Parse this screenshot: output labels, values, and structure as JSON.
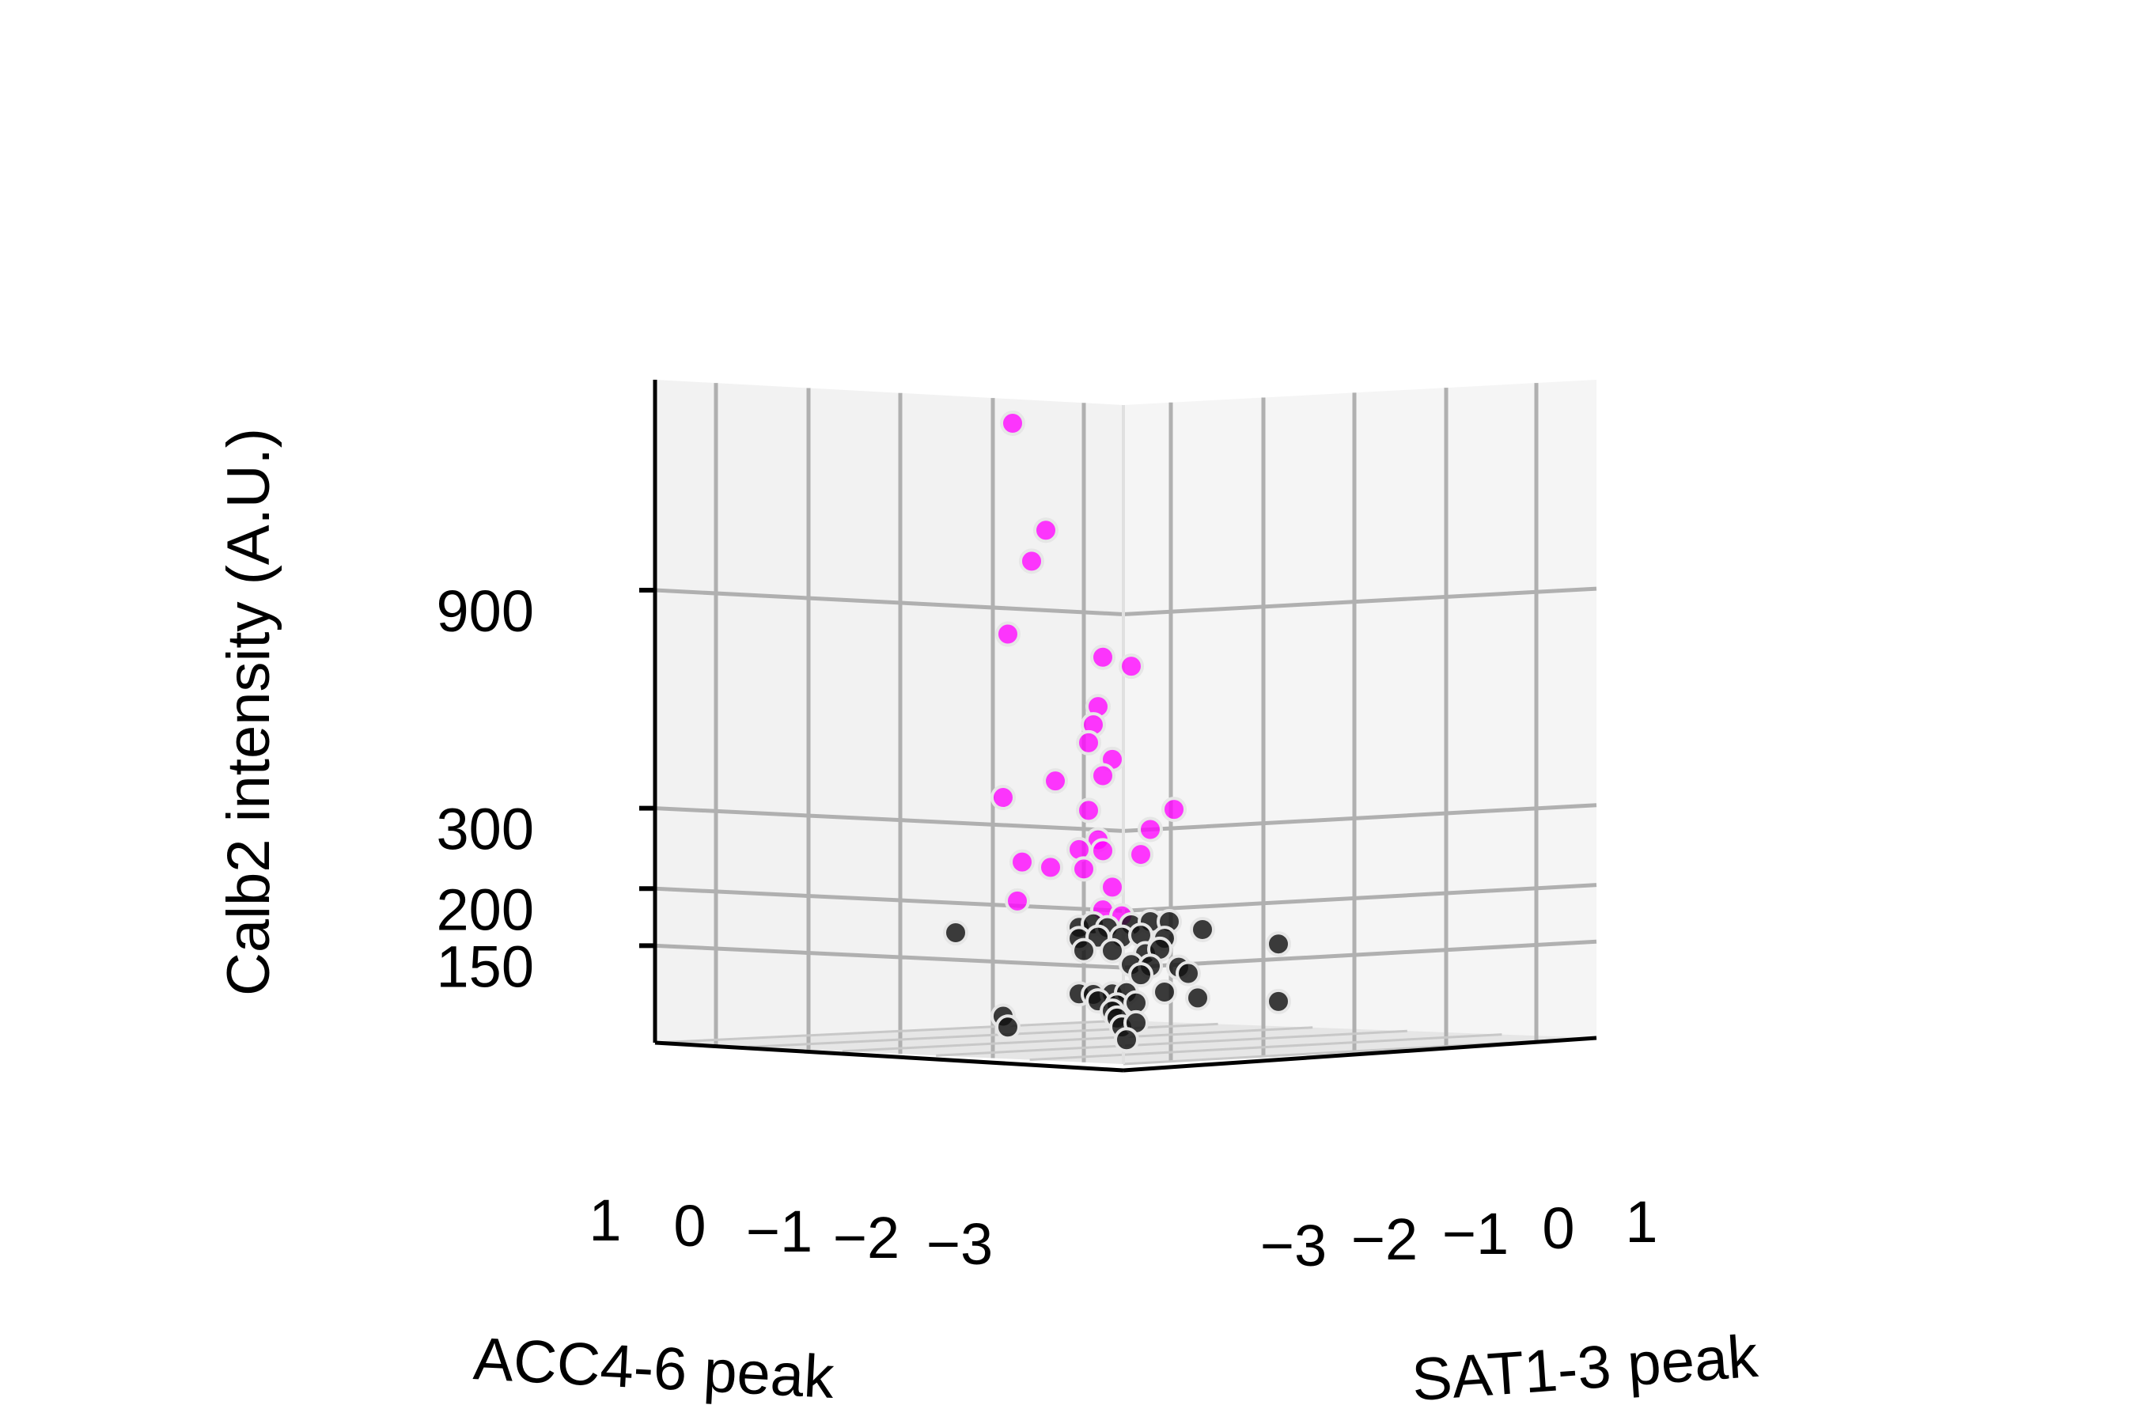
{
  "chart_data": {
    "type": "scatter",
    "projection": "3d",
    "axes": {
      "x": {
        "label": "ACC4-6 peak",
        "tick_labels": [
          "1",
          "0",
          "−1",
          "−2",
          "−3"
        ]
      },
      "y": {
        "label": "SAT1-3 peak",
        "tick_labels": [
          "−3",
          "−2",
          "−1",
          "0",
          "1"
        ]
      },
      "z": {
        "label": "Calb2 intensity (A.U.)",
        "tick_labels": [
          "150",
          "200",
          "300",
          "900"
        ],
        "scale": "log"
      }
    },
    "grid": true,
    "series": [
      {
        "color": "#ff00ff",
        "points": [
          {
            "v": -0.5,
            "z": 2300
          },
          {
            "v": -0.15,
            "z": 1350
          },
          {
            "v": -0.3,
            "z": 1150
          },
          {
            "v": -0.55,
            "z": 790
          },
          {
            "v": 0.45,
            "z": 720
          },
          {
            "v": 0.75,
            "z": 690
          },
          {
            "v": 0.4,
            "z": 560
          },
          {
            "v": 0.35,
            "z": 510
          },
          {
            "v": 0.55,
            "z": 430
          },
          {
            "v": 0.3,
            "z": 465
          },
          {
            "v": 0.45,
            "z": 395
          },
          {
            "v": -0.05,
            "z": 380
          },
          {
            "v": -0.6,
            "z": 345
          },
          {
            "v": 0.3,
            "z": 330
          },
          {
            "v": 1.2,
            "z": 330
          },
          {
            "v": 0.95,
            "z": 300
          },
          {
            "v": 0.4,
            "z": 285
          },
          {
            "v": 0.2,
            "z": 270
          },
          {
            "v": 0.45,
            "z": 270
          },
          {
            "v": 0.85,
            "z": 265
          },
          {
            "v": -0.4,
            "z": 250
          },
          {
            "v": -0.1,
            "z": 245
          },
          {
            "v": 0.25,
            "z": 245
          },
          {
            "v": 0.55,
            "z": 225
          },
          {
            "v": -0.45,
            "z": 205
          },
          {
            "v": 0.45,
            "z": 200
          },
          {
            "v": 0.65,
            "z": 195
          }
        ]
      },
      {
        "color": "#111111",
        "points": [
          {
            "v": -1.1,
            "z": 172
          },
          {
            "v": 0.2,
            "z": 182
          },
          {
            "v": 0.35,
            "z": 186
          },
          {
            "v": 0.5,
            "z": 183
          },
          {
            "v": 0.75,
            "z": 186
          },
          {
            "v": 0.95,
            "z": 188
          },
          {
            "v": 1.15,
            "z": 187
          },
          {
            "v": 1.5,
            "z": 178
          },
          {
            "v": 0.2,
            "z": 172
          },
          {
            "v": 0.4,
            "z": 174
          },
          {
            "v": 0.65,
            "z": 175
          },
          {
            "v": 0.85,
            "z": 176
          },
          {
            "v": 1.1,
            "z": 172
          },
          {
            "v": 0.25,
            "z": 162
          },
          {
            "v": 0.55,
            "z": 163
          },
          {
            "v": 0.9,
            "z": 160
          },
          {
            "v": 1.05,
            "z": 163
          },
          {
            "v": 2.3,
            "z": 162
          },
          {
            "v": 0.75,
            "z": 152
          },
          {
            "v": 0.95,
            "z": 150
          },
          {
            "v": 1.25,
            "z": 148
          },
          {
            "v": 1.35,
            "z": 143
          },
          {
            "v": 0.85,
            "z": 144
          },
          {
            "v": 0.2,
            "z": 130
          },
          {
            "v": 0.35,
            "z": 130
          },
          {
            "v": 0.55,
            "z": 131
          },
          {
            "v": 0.7,
            "z": 132
          },
          {
            "v": 0.4,
            "z": 126
          },
          {
            "v": 0.6,
            "z": 124
          },
          {
            "v": 0.8,
            "z": 125
          },
          {
            "v": 1.1,
            "z": 131
          },
          {
            "v": 1.45,
            "z": 126
          },
          {
            "v": 2.3,
            "z": 121
          },
          {
            "v": 0.55,
            "z": 120
          },
          {
            "v": 0.6,
            "z": 116
          },
          {
            "v": -0.6,
            "z": 114
          },
          {
            "v": 0.65,
            "z": 111
          },
          {
            "v": 0.8,
            "z": 113
          },
          {
            "v": -0.55,
            "z": 108
          },
          {
            "v": 0.7,
            "z": 104
          }
        ]
      }
    ]
  }
}
